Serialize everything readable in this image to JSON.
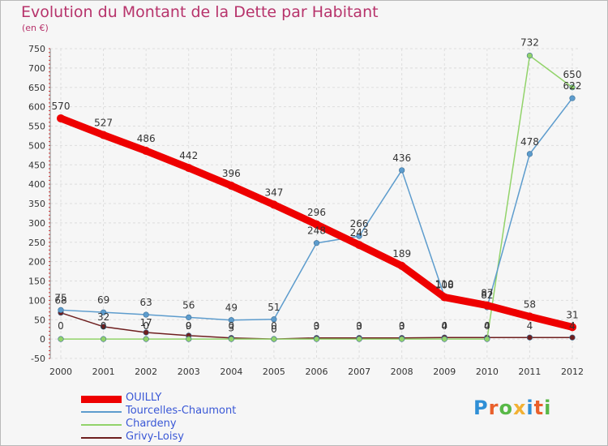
{
  "header": {
    "title": "Evolution du Montant de la Dette par Habitant",
    "unit": "(en €)"
  },
  "logo": {
    "text": "Proxiti",
    "colors": [
      "#2f8fd6",
      "#e9602b",
      "#58b847",
      "#f2b134",
      "#2f8fd6",
      "#e9602b",
      "#58b847"
    ]
  },
  "chart_data": {
    "type": "line",
    "title": "Evolution du Montant de la Dette par Habitant",
    "ylabel": "(en €)",
    "x": [
      "2000",
      "2001",
      "2002",
      "2003",
      "2004",
      "2005",
      "2006",
      "2007",
      "2008",
      "2009",
      "2010",
      "2011",
      "2012"
    ],
    "ylim": [
      -50,
      750
    ],
    "yticks": [
      -50,
      0,
      50,
      100,
      150,
      200,
      250,
      300,
      350,
      400,
      450,
      500,
      550,
      600,
      650,
      700,
      750
    ],
    "grid": true,
    "legend_position": "bottom-left",
    "series": [
      {
        "name": "OUILLY",
        "color": "#ee0000",
        "values": [
          570,
          527,
          486,
          442,
          396,
          347,
          296,
          243,
          189,
          108,
          87,
          58,
          31
        ]
      },
      {
        "name": "Tourcelles-Chaumont",
        "color": "#5d9ccd",
        "values": [
          75,
          69,
          63,
          56,
          49,
          51,
          248,
          266,
          436,
          110,
          82,
          478,
          622
        ]
      },
      {
        "name": "Chardeny",
        "color": "#92d36a",
        "values": [
          0,
          0,
          0,
          0,
          0,
          0,
          0,
          0,
          0,
          0,
          0,
          732,
          650
        ]
      },
      {
        "name": "Grivy-Loisy",
        "color": "#6e1f1f",
        "values": [
          68,
          32,
          17,
          9,
          3,
          0,
          3,
          3,
          3,
          4,
          4,
          4,
          4
        ]
      }
    ]
  }
}
